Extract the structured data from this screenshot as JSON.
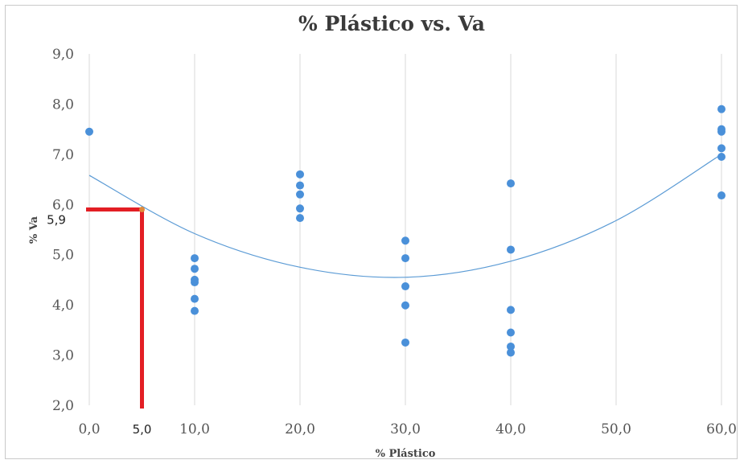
{
  "chart_data": {
    "type": "scatter",
    "title": "% Plástico vs. Va",
    "xlabel": "% Plástico",
    "ylabel": "% Va",
    "xlim": [
      0,
      60
    ],
    "ylim": [
      2,
      9
    ],
    "x_ticks": [
      "0,0",
      "10,0",
      "20,0",
      "30,0",
      "40,0",
      "50,0",
      "60,0"
    ],
    "x_tick_values": [
      0,
      10,
      20,
      30,
      40,
      50,
      60
    ],
    "y_ticks": [
      "2,0",
      "3,0",
      "4,0",
      "5,0",
      "6,0",
      "7,0",
      "8,0",
      "9,0"
    ],
    "y_tick_values": [
      2,
      3,
      4,
      5,
      6,
      7,
      8,
      9
    ],
    "grid": "vertical",
    "points_color": "#4a90d9",
    "trend_color": "#5b9bd5",
    "highlight_color": "#e31e24",
    "points": [
      {
        "x": 0,
        "y": 7.45
      },
      {
        "x": 10,
        "y": 4.93
      },
      {
        "x": 10,
        "y": 4.72
      },
      {
        "x": 10,
        "y": 4.5
      },
      {
        "x": 10,
        "y": 4.45
      },
      {
        "x": 10,
        "y": 4.12
      },
      {
        "x": 10,
        "y": 3.88
      },
      {
        "x": 20,
        "y": 6.6
      },
      {
        "x": 20,
        "y": 6.38
      },
      {
        "x": 20,
        "y": 6.2
      },
      {
        "x": 20,
        "y": 5.92
      },
      {
        "x": 20,
        "y": 5.73
      },
      {
        "x": 30,
        "y": 5.28
      },
      {
        "x": 30,
        "y": 4.93
      },
      {
        "x": 30,
        "y": 4.37
      },
      {
        "x": 30,
        "y": 3.99
      },
      {
        "x": 30,
        "y": 3.25
      },
      {
        "x": 40,
        "y": 6.42
      },
      {
        "x": 40,
        "y": 5.1
      },
      {
        "x": 40,
        "y": 3.9
      },
      {
        "x": 40,
        "y": 3.45
      },
      {
        "x": 40,
        "y": 3.17
      },
      {
        "x": 40,
        "y": 3.05
      },
      {
        "x": 60,
        "y": 7.9
      },
      {
        "x": 60,
        "y": 7.5
      },
      {
        "x": 60,
        "y": 7.45
      },
      {
        "x": 60,
        "y": 7.12
      },
      {
        "x": 60,
        "y": 6.95
      },
      {
        "x": 60,
        "y": 6.18
      }
    ],
    "trendline": {
      "type": "polynomial",
      "x": [
        0,
        10,
        20,
        30,
        40,
        50,
        60
      ],
      "y": [
        6.58,
        5.42,
        4.75,
        4.55,
        4.87,
        5.68,
        7.0
      ]
    },
    "annotation": {
      "x": 5.0,
      "y": 5.9,
      "x_label": "5,0",
      "y_label": "5,9"
    }
  }
}
